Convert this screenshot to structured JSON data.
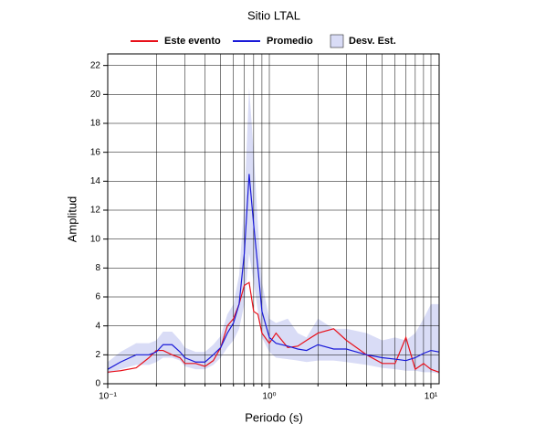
{
  "chart_data": {
    "type": "line",
    "title": "Sitio LTAL",
    "xlabel": "Periodo (s)",
    "ylabel": "Amplitud",
    "xscale": "log",
    "grid": true,
    "legend": "top",
    "x": [
      0.1,
      0.12,
      0.15,
      0.18,
      0.2,
      0.22,
      0.25,
      0.28,
      0.3,
      0.35,
      0.4,
      0.45,
      0.5,
      0.55,
      0.6,
      0.65,
      0.7,
      0.75,
      0.8,
      0.85,
      0.9,
      1.0,
      1.1,
      1.3,
      1.5,
      1.7,
      2.0,
      2.5,
      3,
      4,
      5,
      6,
      7,
      8,
      9,
      10,
      11.2
    ],
    "series": [
      {
        "name": "Este evento",
        "color": "#e8101a",
        "values": [
          0.8,
          0.9,
          1.1,
          1.8,
          2.3,
          2.3,
          2.0,
          1.8,
          1.4,
          1.4,
          1.2,
          1.6,
          2.5,
          4.0,
          4.5,
          5.5,
          6.8,
          7.0,
          5,
          4.8,
          3.5,
          2.8,
          3.5,
          2.5,
          2.6,
          3.0,
          3.5,
          3.8,
          3.0,
          2.0,
          1.4,
          1.4,
          3.2,
          1.0,
          1.4,
          1.0,
          0.8
        ]
      },
      {
        "name": "Promedio",
        "color": "#1a1ad8",
        "values": [
          1.0,
          1.5,
          2.0,
          2.0,
          2.2,
          2.7,
          2.7,
          2.2,
          1.8,
          1.5,
          1.5,
          2.0,
          2.5,
          3.5,
          4.2,
          5.5,
          9,
          14.5,
          11,
          8,
          5,
          3.2,
          2.8,
          2.6,
          2.4,
          2.3,
          2.7,
          2.4,
          2.4,
          2.0,
          1.8,
          1.7,
          1.6,
          1.8,
          2.1,
          2.3,
          2.2
        ]
      },
      {
        "name": "Desv. Est.",
        "type": "band",
        "color": "#d9dcf6",
        "lower": [
          0.7,
          1.0,
          1.3,
          1.3,
          1.5,
          1.8,
          1.8,
          1.6,
          1.2,
          1.0,
          1.0,
          1.3,
          1.8,
          2.5,
          3.0,
          3.8,
          5.5,
          9,
          7,
          5,
          3.2,
          2.2,
          1.8,
          1.7,
          1.6,
          1.5,
          1.6,
          1.6,
          1.5,
          1.3,
          1.1,
          1.0,
          0.9,
          0.9,
          0.8,
          0.8,
          0.7
        ],
        "upper": [
          1.5,
          2.2,
          2.8,
          2.8,
          3.0,
          3.6,
          3.6,
          3.0,
          2.5,
          2.2,
          2.2,
          2.7,
          3.3,
          4.8,
          5.5,
          7.5,
          12.5,
          20.5,
          16,
          11,
          7,
          4.5,
          4.2,
          4.5,
          3.5,
          3.2,
          4.5,
          3.8,
          3.8,
          3.5,
          3.0,
          3.2,
          3.0,
          3.5,
          4.5,
          5.5,
          5.5
        ]
      }
    ],
    "xlim": [
      0.1,
      11.24
    ],
    "xticks": [
      {
        "value": 0.1,
        "label": "10⁻¹"
      },
      {
        "value": 1,
        "label": "10⁰"
      },
      {
        "value": 10,
        "label": "10¹"
      }
    ],
    "xminorticks": [
      0.2,
      0.3,
      0.4,
      0.5,
      0.6,
      0.7,
      0.8,
      0.9,
      2,
      3,
      4,
      5,
      6,
      7,
      8,
      9
    ],
    "ylim": [
      0,
      22.8
    ],
    "yticks": [
      0,
      2,
      4,
      6,
      8,
      10,
      12,
      14,
      16,
      18,
      20,
      22
    ]
  }
}
